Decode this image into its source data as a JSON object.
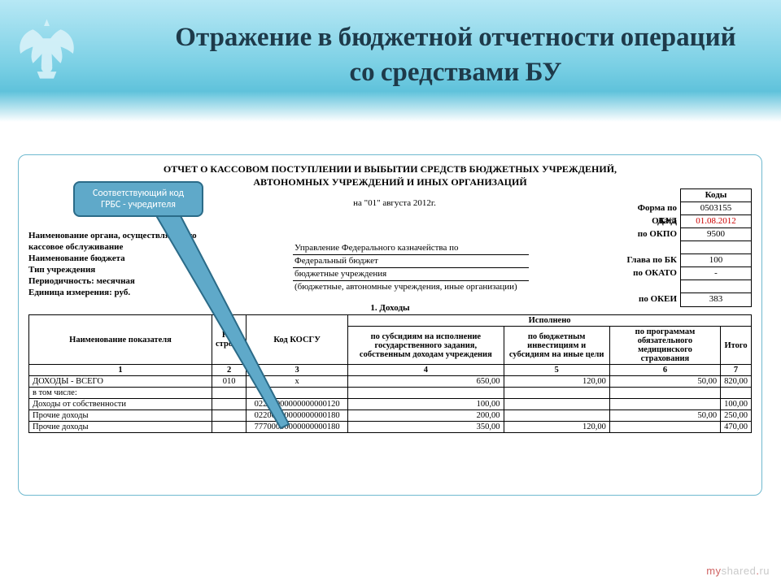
{
  "slide": {
    "title": "Отражение в бюджетной отчетности операций со средствами БУ"
  },
  "doc": {
    "title_line1": "ОТЧЕТ О КАССОВОМ ПОСТУПЛЕНИИ И ВЫБЫТИИ СРЕДСТВ БЮДЖЕТНЫХ УЧРЕЖДЕНИЙ,",
    "title_line2": "АВТОНОМНЫХ УЧРЕЖДЕНИЙ И ИНЫХ ОРГАНИЗАЦИЙ",
    "date_line": "на \"01\" августа 2012г.",
    "left_labels": {
      "org": "Наименование органа, осуществляющего",
      "org2": "кассовое обслуживание",
      "budget": "Наименование бюджета",
      "type": "Тип учреждения",
      "period": " Периодичность:    месячная",
      "unit": "Единица измерения: руб."
    },
    "mid_values": {
      "org": "Управление Федерального казначейства по",
      "budget": "Федеральный бюджет",
      "type": "бюджетные учреждения",
      "paren": "(бюджетные, автономные учреждения, иные организации)"
    },
    "right_labels": {
      "form": "Форма по ОКУД",
      "date": "Дата",
      "okpo": "по ОКПО",
      "blank": "",
      "glava": "Глава по БК",
      "okato": "по ОКАТО",
      "blank2": "",
      "okei": "по ОКЕИ"
    },
    "codes": {
      "header": "Коды",
      "okud": "0503155",
      "date": "01.08.2012",
      "okpo": "9500",
      "blank": "",
      "glava": "100",
      "okato": "-",
      "blank2": "",
      "okei": "383"
    },
    "section1": "1. Доходы"
  },
  "table": {
    "head_name": "Наименование показателя",
    "head_code": "Код строки",
    "head_kosgu": "Код КОСГУ",
    "head_exec": "Исполнено",
    "head_c4": "по субсидиям на исполнение государственного задания, собственным доходам учреждения",
    "head_c5": "по бюджетным инвестициям и субсидиям на иные цели",
    "head_c6": "по программам обязательного медицинского страхования",
    "head_c7": "Итого",
    "numrow": {
      "c1": "1",
      "c2": "2",
      "c3": "3",
      "c4": "4",
      "c5": "5",
      "c6": "6",
      "c7": "7"
    },
    "rows": [
      {
        "name": "ДОХОДЫ - ВСЕГО",
        "code": "010",
        "kosgu": "х",
        "c4": "650,00",
        "c5": "120,00",
        "c6": "50,00",
        "c7": "820,00"
      },
      {
        "name": "           в том числе:",
        "code": "",
        "kosgu": "",
        "c4": "",
        "c5": "",
        "c6": "",
        "c7": ""
      },
      {
        "name": "Доходы от собственности",
        "code": "",
        "kosgu": "02200000000000000120",
        "c4": "100,00",
        "c5": "",
        "c6": "",
        "c7": "100,00"
      },
      {
        "name": "Прочие доходы",
        "code": "",
        "kosgu": "02200000000000000180",
        "c4": "200,00",
        "c5": "",
        "c6": "50,00",
        "c7": "250,00"
      },
      {
        "name": "Прочие доходы",
        "code": "",
        "kosgu": "77700000000000000180",
        "c4": "350,00",
        "c5": "120,00",
        "c6": "",
        "c7": "470,00"
      }
    ]
  },
  "callout": {
    "text1": "Соответствующий  код",
    "text2": "ГРБС - учредителя"
  },
  "watermark": {
    "my": "my",
    "shared": "shared",
    "dot": ".",
    "ru": "ru"
  },
  "colors": {
    "band_top": "#b7e8f5",
    "band_mid": "#79cfe4",
    "accent": "#5fa9c9",
    "frame_border": "#6fb9cf",
    "callout_border": "#2b6b88",
    "code_red": "#cc0000"
  }
}
